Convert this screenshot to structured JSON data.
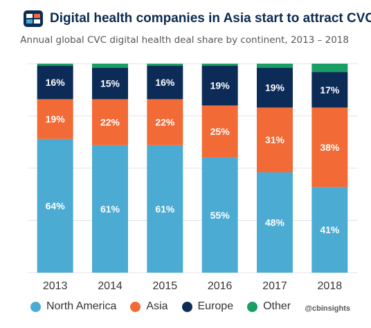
{
  "header": {
    "title": "Digital health companies in Asia start to attract CVCs",
    "subtitle": "Annual global CVC digital health deal share by continent, 2013 – 2018"
  },
  "watermark": "@cbinsights",
  "colors": {
    "north_america": "#4cabd3",
    "asia": "#f26a36",
    "europe": "#0c2c57",
    "other": "#1a9e64",
    "brand": "#0c2c57"
  },
  "legend": [
    {
      "label": "North America",
      "color": "#4cabd3"
    },
    {
      "label": "Asia",
      "color": "#f26a36"
    },
    {
      "label": "Europe",
      "color": "#0c2c57"
    },
    {
      "label": "Other",
      "color": "#1a9e64"
    }
  ],
  "chart_data": {
    "type": "bar",
    "stacked": true,
    "categories": [
      "2013",
      "2014",
      "2015",
      "2016",
      "2017",
      "2018"
    ],
    "ylim": [
      0,
      100
    ],
    "grid": true,
    "series": [
      {
        "name": "North America",
        "color": "#4cabd3",
        "values": [
          64,
          61,
          61,
          55,
          48,
          41
        ],
        "labels": [
          "64%",
          "61%",
          "61%",
          "55%",
          "48%",
          "41%"
        ]
      },
      {
        "name": "Asia",
        "color": "#f26a36",
        "values": [
          19,
          22,
          22,
          25,
          31,
          38
        ],
        "labels": [
          "19%",
          "22%",
          "22%",
          "25%",
          "31%",
          "38%"
        ]
      },
      {
        "name": "Europe",
        "color": "#0c2c57",
        "values": [
          16,
          15,
          16,
          19,
          19,
          17
        ],
        "labels": [
          "16%",
          "15%",
          "16%",
          "19%",
          "19%",
          "17%"
        ]
      },
      {
        "name": "Other",
        "color": "#1a9e64",
        "values": [
          1,
          2,
          1,
          1,
          2,
          4
        ],
        "labels": [
          "",
          "",
          "",
          "",
          "",
          ""
        ]
      }
    ]
  }
}
